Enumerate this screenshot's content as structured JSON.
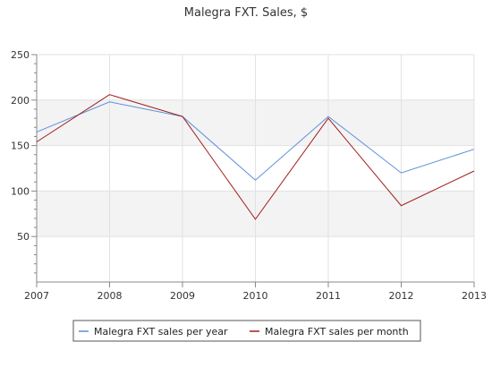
{
  "chart_data": {
    "type": "line",
    "title": "Malegra FXT. Sales, $",
    "xlabel": "",
    "ylabel": "",
    "x": [
      "2007",
      "2008",
      "2009",
      "2010",
      "2011",
      "2012",
      "2013"
    ],
    "ylim": [
      0,
      250
    ],
    "yticks": [
      50,
      100,
      150,
      200,
      250
    ],
    "grid": "horizontal bands",
    "legend_position": "bottom",
    "series": [
      {
        "name": "Malegra FXT sales per year",
        "color": "#5b8fdc",
        "values": [
          165,
          198,
          182,
          112,
          182,
          120,
          146
        ]
      },
      {
        "name": "Malegra FXT sales per month",
        "color": "#a01e1e",
        "values": [
          154,
          206,
          182,
          69,
          180,
          84,
          122
        ]
      }
    ]
  }
}
